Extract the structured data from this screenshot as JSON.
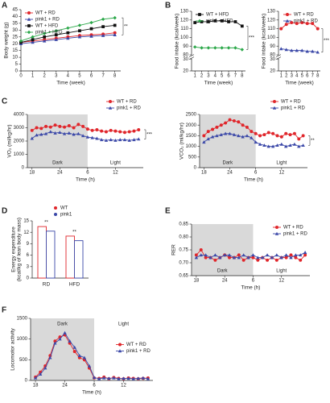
{
  "chart_data": [
    {
      "panel": "A",
      "type": "line",
      "xlabel": "Time (week)",
      "ylabel": "Body weight (g)",
      "x": [
        0,
        1,
        2,
        3,
        4,
        5,
        6,
        7,
        8
      ],
      "xlim": [
        0,
        8.5
      ],
      "xticks": [
        0,
        1,
        2,
        3,
        4,
        5,
        6,
        7,
        8
      ],
      "ylim": [
        0,
        45
      ],
      "yticks": [
        0,
        5,
        10,
        15,
        20,
        25,
        30,
        35,
        40,
        45
      ],
      "legend": "upper left",
      "annotations": [
        "**"
      ],
      "series": [
        {
          "name": "WT + RD",
          "color": "#e0262b",
          "marker": "circle",
          "values": [
            21,
            22,
            23,
            24,
            25,
            26,
            26.5,
            27,
            28
          ]
        },
        {
          "name": "pink1 + RD",
          "color": "#3b48a8",
          "marker": "triangle",
          "values": [
            20,
            21,
            22,
            23,
            24,
            25,
            25.5,
            26,
            26.5
          ]
        },
        {
          "name": "WT + HFD",
          "color": "#111111",
          "marker": "square",
          "values": [
            21,
            23,
            25,
            26.5,
            28,
            29.5,
            31,
            32.5,
            33.5
          ]
        },
        {
          "name": "pink1 + HFD",
          "color": "#2ca84a",
          "marker": "diamond",
          "values": [
            22,
            25,
            27.5,
            29.5,
            31.5,
            33.5,
            35.5,
            38,
            39
          ]
        }
      ]
    },
    {
      "panel": "B",
      "type": "line",
      "xlabel": "Time (week)",
      "ylabel": "Food intake (kcal/week)",
      "x": [
        1,
        2,
        3,
        4,
        5,
        6,
        7,
        8
      ],
      "xlim": [
        0.5,
        8.5
      ],
      "xticks": [
        1,
        2,
        3,
        4,
        5,
        6,
        7,
        8
      ],
      "ylim": [
        20,
        130
      ],
      "axis_break": [
        30,
        80
      ],
      "yticks": [
        20,
        30,
        80,
        90,
        100,
        110,
        120,
        130
      ],
      "legend": "upper left",
      "annotations": [
        "***"
      ],
      "series": [
        {
          "name": "WT + HFD",
          "color": "#111111",
          "marker": "square",
          "values": [
            117,
            118,
            118,
            119,
            119,
            118,
            118,
            113
          ]
        },
        {
          "name": "pink1 + HFD",
          "color": "#2ca84a",
          "marker": "diamond",
          "values": [
            89,
            88,
            88,
            88,
            88,
            88,
            88,
            86
          ]
        }
      ]
    },
    {
      "type": "line",
      "xlabel": "Time (week)",
      "ylabel": "Food intake (kcal/week)",
      "x": [
        1,
        2,
        3,
        4,
        5,
        6,
        7,
        8
      ],
      "xlim": [
        0.5,
        8.5
      ],
      "xticks": [
        1,
        2,
        3,
        4,
        5,
        6,
        7,
        8
      ],
      "ylim": [
        20,
        130
      ],
      "axis_break": [
        30,
        80
      ],
      "yticks": [
        20,
        30,
        80,
        90,
        100,
        110,
        120,
        130
      ],
      "legend": "upper right",
      "annotations": [
        "***"
      ],
      "series": [
        {
          "name": "WT + RD",
          "color": "#e0262b",
          "marker": "circle",
          "values": [
            110,
            115,
            117,
            116,
            117,
            116,
            116,
            110
          ]
        },
        {
          "name": "pink1 + RD",
          "color": "#3b48a8",
          "marker": "triangle",
          "values": [
            87,
            86,
            85,
            85,
            85,
            84,
            84,
            83
          ]
        }
      ]
    },
    {
      "panel": "C",
      "type": "line",
      "xlabel": "Time (h)",
      "ylabel": "VO₂ (ml/kg/hr)",
      "x": [
        18,
        19,
        20,
        21,
        22,
        23,
        24,
        25,
        26,
        27,
        28,
        29,
        30,
        31,
        32,
        33,
        34,
        35,
        36,
        37,
        38,
        39,
        40,
        41
      ],
      "xlim": [
        17,
        42
      ],
      "xticks": [
        18,
        24,
        {
          "value": 30,
          "label": "6"
        },
        {
          "value": 36,
          "label": "12"
        }
      ],
      "ylim": [
        0,
        4000
      ],
      "yticks": [
        0,
        1000,
        2000,
        3000,
        4000
      ],
      "legend": "outside upper right",
      "annotations": [
        "***"
      ],
      "regions": [
        {
          "label": "Dark",
          "range": [
            17,
            30
          ],
          "color": "#d9d9d9"
        },
        {
          "label": "Light",
          "range": [
            30,
            42
          ]
        }
      ],
      "region_label": "bottom",
      "series": [
        {
          "name": "WT + RD",
          "color": "#e0262b",
          "marker": "circle",
          "values": [
            2800,
            3000,
            2950,
            3100,
            3050,
            3200,
            3100,
            3050,
            3150,
            3000,
            3250,
            3100,
            2900,
            2800,
            2850,
            2750,
            2700,
            2800,
            2750,
            2700,
            2650,
            2700,
            2750,
            2850
          ]
        },
        {
          "name": "pink1 + RD",
          "color": "#3b48a8",
          "marker": "triangle",
          "values": [
            2200,
            2450,
            2500,
            2550,
            2700,
            2600,
            2650,
            2550,
            2600,
            2500,
            2550,
            2400,
            2300,
            2250,
            2200,
            2100,
            2050,
            2100,
            2050,
            2100,
            2100,
            2050,
            2100,
            2150
          ]
        }
      ]
    },
    {
      "type": "line",
      "xlabel": "Time (h)",
      "ylabel": "VCO₂ (ml/kg/hr)",
      "x": [
        18,
        19,
        20,
        21,
        22,
        23,
        24,
        25,
        26,
        27,
        28,
        29,
        30,
        31,
        32,
        33,
        34,
        35,
        36,
        37,
        38,
        39,
        40,
        41
      ],
      "xlim": [
        17,
        42
      ],
      "xticks": [
        18,
        24,
        {
          "value": 30,
          "label": "6"
        },
        {
          "value": 36,
          "label": "12"
        }
      ],
      "ylim": [
        0,
        2500
      ],
      "yticks": [
        0,
        500,
        1000,
        1500,
        2000,
        2500
      ],
      "legend": "outside upper right",
      "annotations": [
        "**"
      ],
      "regions": [
        {
          "label": "Dark",
          "range": [
            17,
            30
          ],
          "color": "#d9d9d9"
        },
        {
          "label": "Light",
          "range": [
            30,
            42
          ]
        }
      ],
      "region_label": "bottom",
      "series": [
        {
          "name": "WT + RD",
          "color": "#e0262b",
          "marker": "circle",
          "values": [
            1500,
            1700,
            1800,
            1900,
            2000,
            2100,
            2250,
            2200,
            2150,
            2000,
            1900,
            1700,
            1600,
            1500,
            1550,
            1650,
            1600,
            1500,
            1450,
            1600,
            1550,
            1600,
            1350,
            1500
          ]
        },
        {
          "name": "pink1 + RD",
          "color": "#3b48a8",
          "marker": "triangle",
          "values": [
            1200,
            1350,
            1450,
            1500,
            1550,
            1600,
            1600,
            1550,
            1500,
            1450,
            1500,
            1400,
            1200,
            1100,
            1050,
            1000,
            1000,
            1050,
            1100,
            1000,
            1050,
            1100,
            1000,
            1050
          ]
        }
      ]
    },
    {
      "panel": "D",
      "type": "bar",
      "ylabel": [
        "Energy expenditure",
        "(kcal/kg of lean body mass)"
      ],
      "categories": [
        "RD",
        "HFD"
      ],
      "ylim": [
        0,
        15
      ],
      "yticks": [
        0,
        3,
        6,
        9,
        12,
        15
      ],
      "legend": "outside upper right",
      "annotations": [
        "**",
        "**"
      ],
      "series": [
        {
          "name": "WT",
          "color": "#e0262b",
          "values": [
            13.5,
            11
          ]
        },
        {
          "name": "pink1",
          "color": "#3b48a8",
          "values": [
            12.3,
            9.8
          ]
        }
      ]
    },
    {
      "panel": "E",
      "type": "line",
      "xlabel": "Time (h)",
      "ylabel": "RER",
      "x": [
        18,
        19,
        20,
        21,
        22,
        23,
        24,
        25,
        26,
        27,
        28,
        29,
        30,
        31,
        32,
        33,
        34,
        35,
        36,
        37,
        38,
        39,
        40,
        41
      ],
      "xlim": [
        17,
        42
      ],
      "xticks": [
        18,
        24,
        {
          "value": 30,
          "label": "6"
        },
        {
          "value": 36,
          "label": "12"
        }
      ],
      "ylim": [
        0.65,
        0.85
      ],
      "yticks": [
        {
          "value": 0.65,
          "label": "0.65"
        },
        {
          "value": 0.7,
          "label": "0.70"
        },
        {
          "value": 0.75,
          "label": "0.75"
        },
        {
          "value": 0.8,
          "label": "0.80"
        },
        {
          "value": 0.85,
          "label": "0.85"
        }
      ],
      "legend": "upper right",
      "regions": [
        {
          "label": "Dark",
          "range": [
            17,
            30
          ],
          "color": "#d9d9d9"
        },
        {
          "label": "Light",
          "range": [
            30,
            42
          ]
        }
      ],
      "region_label": "bottom",
      "series": [
        {
          "name": "WT + RD",
          "color": "#e0262b",
          "marker": "circle",
          "values": [
            0.73,
            0.75,
            0.72,
            0.72,
            0.71,
            0.72,
            0.73,
            0.72,
            0.72,
            0.73,
            0.71,
            0.72,
            0.72,
            0.71,
            0.72,
            0.71,
            0.72,
            0.71,
            0.72,
            0.72,
            0.73,
            0.72,
            0.71,
            0.73
          ]
        },
        {
          "name": "pink1 + RD",
          "color": "#3b48a8",
          "marker": "triangle",
          "values": [
            0.72,
            0.73,
            0.73,
            0.72,
            0.73,
            0.72,
            0.73,
            0.73,
            0.72,
            0.72,
            0.73,
            0.72,
            0.73,
            0.72,
            0.72,
            0.73,
            0.72,
            0.73,
            0.72,
            0.73,
            0.72,
            0.73,
            0.73,
            0.74
          ]
        }
      ]
    },
    {
      "panel": "F",
      "type": "line",
      "xlabel": "Time (h)",
      "ylabel": "Locomotor activity",
      "x": [
        18,
        19,
        20,
        21,
        22,
        23,
        24,
        25,
        26,
        27,
        28,
        29,
        30,
        31,
        32,
        33,
        34,
        35,
        36,
        37,
        38,
        39,
        40,
        41
      ],
      "xlim": [
        17,
        42
      ],
      "xticks": [
        18,
        24,
        {
          "value": 30,
          "label": "6"
        },
        {
          "value": 36,
          "label": "12"
        }
      ],
      "ylim": [
        0,
        1500
      ],
      "yticks": [
        0,
        500,
        1000,
        1500
      ],
      "legend": "center right",
      "regions": [
        {
          "label": "Dark",
          "range": [
            17,
            30
          ],
          "color": "#d9d9d9"
        },
        {
          "label": "Light",
          "range": [
            30,
            42
          ]
        }
      ],
      "region_label": "top",
      "series": [
        {
          "name": "WT + RD",
          "color": "#e0262b",
          "marker": "circle",
          "values": [
            80,
            200,
            350,
            600,
            950,
            1050,
            1100,
            900,
            700,
            550,
            500,
            300,
            60,
            50,
            80,
            40,
            70,
            50,
            40,
            60,
            50,
            40,
            50,
            60
          ]
        },
        {
          "name": "pink1 + RD",
          "color": "#3b48a8",
          "marker": "triangle",
          "values": [
            60,
            150,
            300,
            550,
            900,
            1000,
            1150,
            950,
            800,
            600,
            550,
            350,
            70,
            40,
            60,
            50,
            60,
            40,
            50,
            50,
            40,
            50,
            60,
            40
          ]
        }
      ]
    }
  ]
}
